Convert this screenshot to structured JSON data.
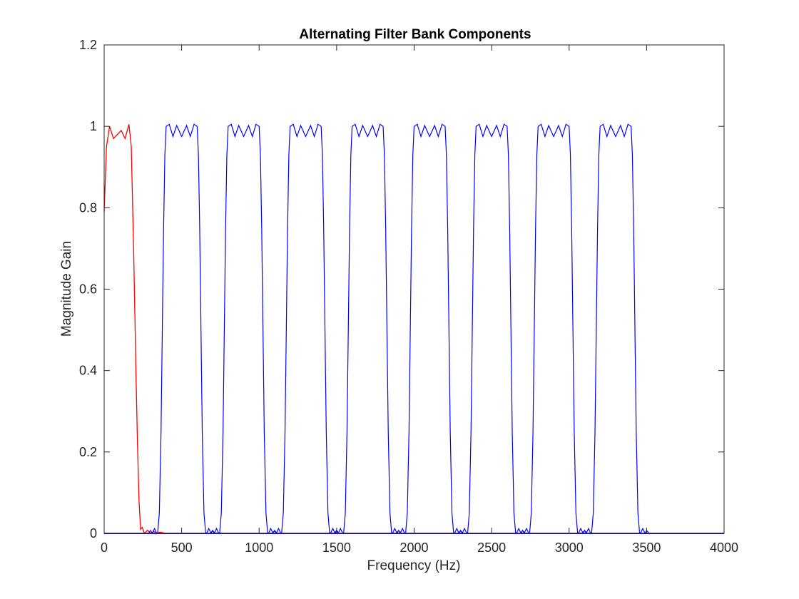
{
  "chart_data": {
    "type": "line",
    "title": "Alternating Filter Bank Components",
    "xlabel": "Frequency (Hz)",
    "ylabel": "Magnitude Gain",
    "xlim": [
      0,
      4000
    ],
    "ylim": [
      0,
      1.2
    ],
    "xticks": [
      0,
      500,
      1000,
      1500,
      2000,
      2500,
      3000,
      3500,
      4000
    ],
    "yticks": [
      0,
      0.2,
      0.4,
      0.6,
      0.8,
      1,
      1.2
    ],
    "xtick_labels": [
      "0",
      "500",
      "1000",
      "1500",
      "2000",
      "2500",
      "3000",
      "3500",
      "4000"
    ],
    "ytick_labels": [
      "0",
      "0.2",
      "0.4",
      "0.6",
      "0.8",
      "1",
      "1.2"
    ],
    "grid": false,
    "series": [
      {
        "color": "#ff0000",
        "description": "lowpass band",
        "x": [
          0,
          15,
          35,
          60,
          85,
          110,
          135,
          160,
          175,
          190,
          205,
          215,
          225,
          235,
          245,
          260,
          280,
          300,
          320,
          340,
          360,
          400,
          4000
        ],
        "y": [
          0.79,
          0.95,
          1.0,
          0.97,
          0.98,
          0.99,
          0.97,
          1.005,
          0.95,
          0.7,
          0.4,
          0.22,
          0.08,
          0.01,
          0.015,
          0.0,
          0.008,
          0.0,
          0.005,
          0.0,
          0.003,
          0.0,
          0.0
        ]
      },
      {
        "color": "#0000ff",
        "description": "bandpass bands",
        "bands": [
          {
            "low": 400,
            "high": 600
          },
          {
            "low": 800,
            "high": 1000
          },
          {
            "low": 1200,
            "high": 1400
          },
          {
            "low": 1600,
            "high": 1800
          },
          {
            "low": 2000,
            "high": 2200
          },
          {
            "low": 2400,
            "high": 2600
          },
          {
            "low": 2800,
            "high": 3000
          },
          {
            "low": 3200,
            "high": 3400
          }
        ],
        "passband_ripple": [
          1.005,
          0.975,
          1.005
        ],
        "stopband_ripple": 0.012,
        "transition_hz": 55
      }
    ]
  }
}
